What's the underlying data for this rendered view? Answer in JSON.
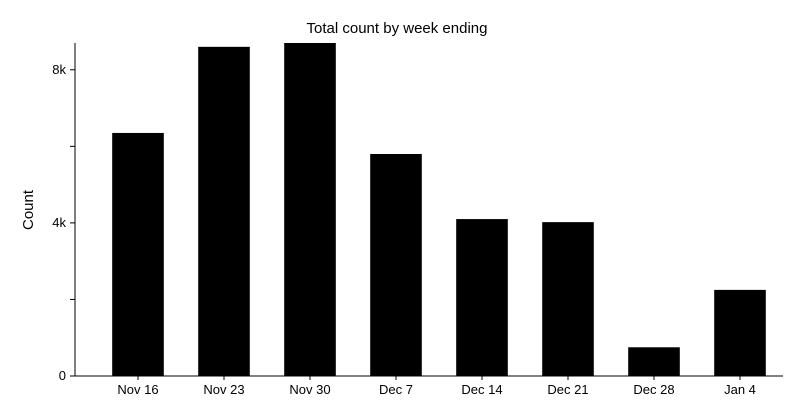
{
  "chart_data": {
    "type": "bar",
    "title": "Total count by week ending",
    "xlabel": "",
    "ylabel": "Count",
    "categories": [
      "Nov 16",
      "Nov 23",
      "Nov 30",
      "Dec 7",
      "Dec 14",
      "Dec 21",
      "Dec 28",
      "Jan 4"
    ],
    "values": [
      6350,
      8600,
      8700,
      5800,
      4100,
      4020,
      750,
      2250
    ],
    "ylim": [
      0,
      8700
    ],
    "yticks": [
      0,
      4000,
      8000
    ],
    "ytick_labels": [
      "0",
      "4k",
      "8k"
    ],
    "y_minor_ticks": [
      2000,
      6000
    ],
    "bar_color": "#000000",
    "grid": false,
    "legend": "none"
  }
}
